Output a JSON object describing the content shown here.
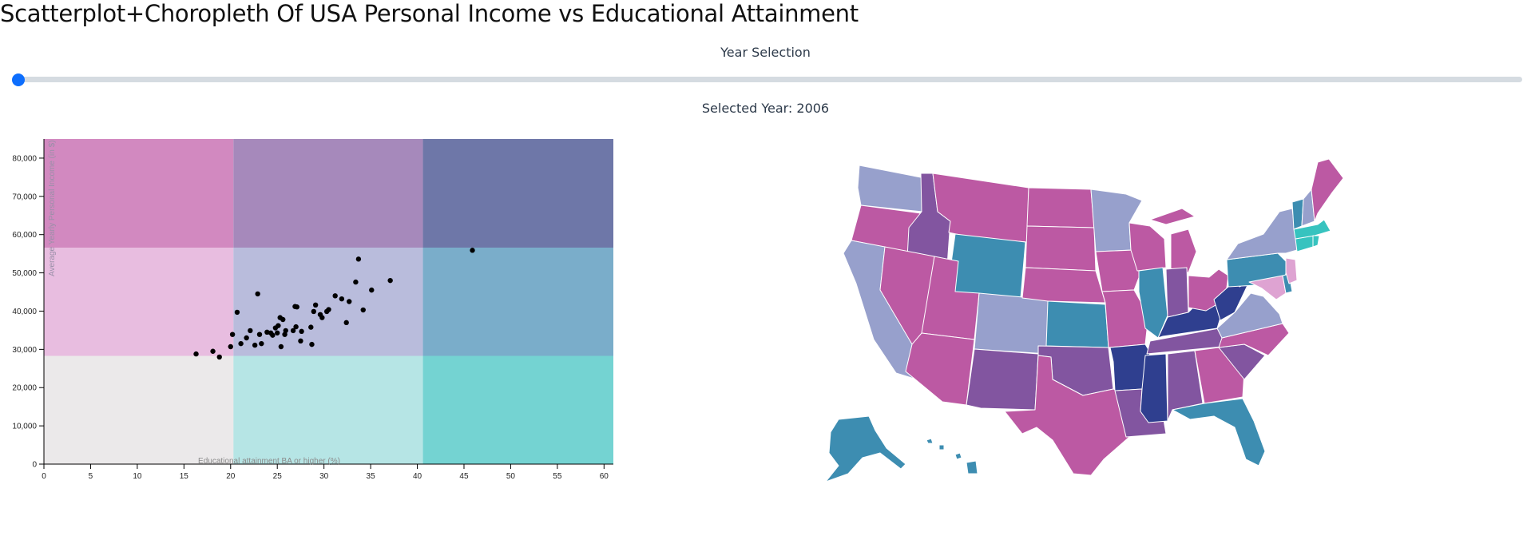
{
  "page": {
    "title": "Scatterplot+Choropleth Of USA Personal Income vs Educational Attainment"
  },
  "year_control": {
    "heading": "Year Selection",
    "selected_prefix": "Selected Year: ",
    "selected_year": "2006",
    "value_fraction": 0.0
  },
  "colors": {
    "bivariate": [
      [
        "#ebe9ea",
        "#b6e5e5",
        "#74d3d2"
      ],
      [
        "#e8bde0",
        "#b9bcdc",
        "#7aadca"
      ],
      [
        "#d289c0",
        "#a689bb",
        "#6e77a8"
      ]
    ],
    "map": {
      "magenta": "#bc59a3",
      "purple": "#8255a0",
      "navy": "#2f3f8f",
      "periwinkle": "#97a0cc",
      "teal": "#3d8db1",
      "turquoise": "#37c3bf",
      "pink": "#dea3d2"
    },
    "slider_thumb": "#0d6efd",
    "slider_track": "#d5dbe1",
    "point": "#000000"
  },
  "chart_data": {
    "type": "scatter",
    "title": "",
    "xlabel": "Educational attainment BA or higher (%)",
    "ylabel": "Average Yearly Personal Income (in $)",
    "xlim": [
      0,
      61
    ],
    "ylim": [
      0,
      85000
    ],
    "x_ticks": [
      "0",
      "5",
      "10",
      "15",
      "20",
      "25",
      "30",
      "35",
      "40",
      "45",
      "50",
      "55",
      "60"
    ],
    "y_ticks": [
      "0",
      "10,000",
      "20,000",
      "30,000",
      "40,000",
      "50,000",
      "60,000",
      "70,000",
      "80,000"
    ],
    "x_tick_values": [
      0,
      5,
      10,
      15,
      20,
      25,
      30,
      35,
      40,
      45,
      50,
      55,
      60
    ],
    "y_tick_values": [
      0,
      10000,
      20000,
      30000,
      40000,
      50000,
      60000,
      70000,
      80000
    ],
    "bivariate_x_breaks": [
      0,
      20.3,
      40.6,
      61
    ],
    "bivariate_y_breaks": [
      0,
      28300,
      56600,
      85000
    ],
    "points": [
      {
        "x": 16.3,
        "y": 28800
      },
      {
        "x": 18.1,
        "y": 29500
      },
      {
        "x": 18.8,
        "y": 28000
      },
      {
        "x": 20.0,
        "y": 30700
      },
      {
        "x": 20.2,
        "y": 33900
      },
      {
        "x": 20.7,
        "y": 39700
      },
      {
        "x": 21.1,
        "y": 31500
      },
      {
        "x": 21.7,
        "y": 33000
      },
      {
        "x": 22.1,
        "y": 34900
      },
      {
        "x": 22.6,
        "y": 31100
      },
      {
        "x": 22.9,
        "y": 44500
      },
      {
        "x": 23.1,
        "y": 33900
      },
      {
        "x": 23.3,
        "y": 31500
      },
      {
        "x": 23.9,
        "y": 34500
      },
      {
        "x": 24.3,
        "y": 34300
      },
      {
        "x": 24.5,
        "y": 33700
      },
      {
        "x": 24.8,
        "y": 35600
      },
      {
        "x": 25.0,
        "y": 34300
      },
      {
        "x": 25.1,
        "y": 36200
      },
      {
        "x": 25.3,
        "y": 38300
      },
      {
        "x": 25.4,
        "y": 30700
      },
      {
        "x": 25.6,
        "y": 37800
      },
      {
        "x": 25.8,
        "y": 33900
      },
      {
        "x": 25.9,
        "y": 34900
      },
      {
        "x": 26.7,
        "y": 34900
      },
      {
        "x": 26.9,
        "y": 41200
      },
      {
        "x": 27.0,
        "y": 35900
      },
      {
        "x": 27.1,
        "y": 41100
      },
      {
        "x": 27.5,
        "y": 32200
      },
      {
        "x": 27.6,
        "y": 34700
      },
      {
        "x": 28.6,
        "y": 35800
      },
      {
        "x": 28.7,
        "y": 31300
      },
      {
        "x": 28.9,
        "y": 39900
      },
      {
        "x": 29.1,
        "y": 41600
      },
      {
        "x": 29.6,
        "y": 39100
      },
      {
        "x": 29.8,
        "y": 38300
      },
      {
        "x": 30.3,
        "y": 39900
      },
      {
        "x": 30.5,
        "y": 40400
      },
      {
        "x": 31.2,
        "y": 44000
      },
      {
        "x": 31.9,
        "y": 43200
      },
      {
        "x": 32.4,
        "y": 37000
      },
      {
        "x": 32.7,
        "y": 42500
      },
      {
        "x": 33.4,
        "y": 47600
      },
      {
        "x": 33.7,
        "y": 53600
      },
      {
        "x": 34.2,
        "y": 40300
      },
      {
        "x": 35.1,
        "y": 45500
      },
      {
        "x": 37.1,
        "y": 48000
      },
      {
        "x": 45.9,
        "y": 55900
      }
    ]
  },
  "map_regions": [
    {
      "state": "WA",
      "color": "periwinkle"
    },
    {
      "state": "OR",
      "color": "magenta"
    },
    {
      "state": "CA",
      "color": "periwinkle"
    },
    {
      "state": "ID",
      "color": "purple"
    },
    {
      "state": "NV",
      "color": "magenta"
    },
    {
      "state": "MT",
      "color": "magenta"
    },
    {
      "state": "WY",
      "color": "teal"
    },
    {
      "state": "UT",
      "color": "magenta"
    },
    {
      "state": "AZ",
      "color": "magenta"
    },
    {
      "state": "CO",
      "color": "periwinkle"
    },
    {
      "state": "NM",
      "color": "purple"
    },
    {
      "state": "ND",
      "color": "magenta"
    },
    {
      "state": "SD",
      "color": "magenta"
    },
    {
      "state": "NE",
      "color": "magenta"
    },
    {
      "state": "KS",
      "color": "teal"
    },
    {
      "state": "OK",
      "color": "purple"
    },
    {
      "state": "TX",
      "color": "magenta"
    },
    {
      "state": "MN",
      "color": "periwinkle"
    },
    {
      "state": "IA",
      "color": "magenta"
    },
    {
      "state": "MO",
      "color": "magenta"
    },
    {
      "state": "AR",
      "color": "navy"
    },
    {
      "state": "LA",
      "color": "purple"
    },
    {
      "state": "WI",
      "color": "magenta"
    },
    {
      "state": "IL",
      "color": "teal"
    },
    {
      "state": "MS",
      "color": "navy"
    },
    {
      "state": "MI",
      "color": "magenta"
    },
    {
      "state": "IN",
      "color": "purple"
    },
    {
      "state": "KY",
      "color": "navy"
    },
    {
      "state": "TN",
      "color": "purple"
    },
    {
      "state": "AL",
      "color": "purple"
    },
    {
      "state": "OH",
      "color": "magenta"
    },
    {
      "state": "WV",
      "color": "navy"
    },
    {
      "state": "GA",
      "color": "magenta"
    },
    {
      "state": "FL",
      "color": "teal"
    },
    {
      "state": "SC",
      "color": "purple"
    },
    {
      "state": "NC",
      "color": "magenta"
    },
    {
      "state": "VA",
      "color": "periwinkle"
    },
    {
      "state": "PA",
      "color": "teal"
    },
    {
      "state": "NY",
      "color": "periwinkle"
    },
    {
      "state": "MD",
      "color": "pink"
    },
    {
      "state": "DE",
      "color": "teal"
    },
    {
      "state": "NJ",
      "color": "pink"
    },
    {
      "state": "CT",
      "color": "turquoise"
    },
    {
      "state": "MA",
      "color": "turquoise"
    },
    {
      "state": "RI",
      "color": "turquoise"
    },
    {
      "state": "VT",
      "color": "teal"
    },
    {
      "state": "NH",
      "color": "periwinkle"
    },
    {
      "state": "ME",
      "color": "magenta"
    },
    {
      "state": "AK",
      "color": "teal"
    },
    {
      "state": "HI",
      "color": "teal"
    }
  ]
}
